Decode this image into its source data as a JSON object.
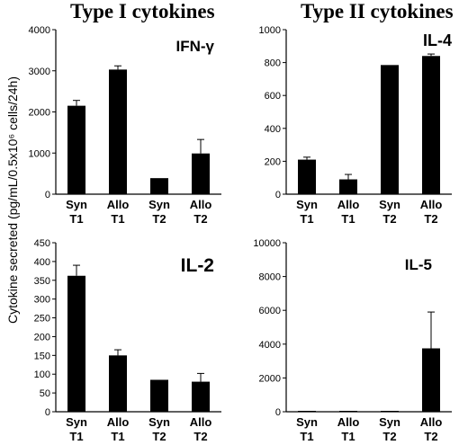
{
  "titles": {
    "left": "Type I cytokines",
    "right": "Type II cytokines"
  },
  "ylabel": "Cytokine  secreted (pg/mL/0.5x10⁶ cells/24h)",
  "colors": {
    "bar": "#000000",
    "axis": "#000000",
    "background": "#ffffff"
  },
  "chart_data": [
    {
      "type": "bar",
      "panel_label": "IFN-γ",
      "categories": [
        "Syn\nT1",
        "Allo\nT1",
        "Syn\nT2",
        "Allo\nT2"
      ],
      "values": [
        2150,
        3030,
        390,
        990
      ],
      "errors": [
        130,
        90,
        0,
        340
      ],
      "ylim": [
        0,
        4000
      ],
      "yticks": [
        0,
        1000,
        2000,
        3000,
        4000
      ]
    },
    {
      "type": "bar",
      "panel_label": "IL-4",
      "categories": [
        "Syn\nT1",
        "Allo\nT1",
        "Syn\nT2",
        "Allo\nT2"
      ],
      "values": [
        210,
        90,
        785,
        840
      ],
      "errors": [
        15,
        30,
        0,
        12
      ],
      "ylim": [
        0,
        1000
      ],
      "yticks": [
        0,
        200,
        400,
        600,
        800,
        1000
      ]
    },
    {
      "type": "bar",
      "panel_label": "IL-2",
      "categories": [
        "Syn\nT1",
        "Allo\nT1",
        "Syn\nT2",
        "Allo\nT2"
      ],
      "values": [
        362,
        150,
        85,
        80
      ],
      "errors": [
        28,
        15,
        0,
        22
      ],
      "ylim": [
        0,
        450
      ],
      "yticks": [
        0,
        50,
        100,
        150,
        200,
        250,
        300,
        350,
        400,
        450
      ]
    },
    {
      "type": "bar",
      "panel_label": "IL-5",
      "categories": [
        "Syn\nT1",
        "Allo\nT1",
        "Syn\nT2",
        "Allo\nT2"
      ],
      "values": [
        20,
        20,
        40,
        3750
      ],
      "errors": [
        0,
        0,
        0,
        2150
      ],
      "ylim": [
        0,
        10000
      ],
      "yticks": [
        0,
        2000,
        4000,
        6000,
        8000,
        10000
      ]
    }
  ]
}
